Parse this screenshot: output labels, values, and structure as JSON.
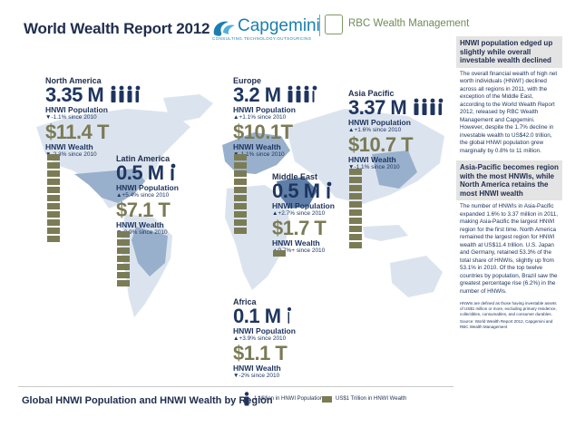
{
  "header": {
    "title": "World Wealth Report 2012",
    "capgemini_logo": "Capgemini",
    "capgemini_tagline": "CONSULTING.TECHNOLOGY.OUTSOURCING",
    "rbc_logo": "RBC Wealth Management"
  },
  "colors": {
    "navy": "#1f3560",
    "olive": "#7b7c56",
    "map_light": "#dbe4ee",
    "map_dark": "#7f9bbd"
  },
  "regions": [
    {
      "id": "north-america",
      "name": "North America",
      "population": "3.35 M",
      "pop_label": "HNWI Population",
      "pop_change": "▼-1.1% since 2010",
      "wealth": "$11.4 T",
      "wealth_label": "HNWI Wealth",
      "wealth_change": "▼-2.3% since 2010"
    },
    {
      "id": "europe",
      "name": "Europe",
      "population": "3.2 M",
      "pop_label": "HNWI Population",
      "pop_change": "▲+1.1% since 2010",
      "wealth": "$10.1T",
      "wealth_label": "HNWI Wealth",
      "wealth_change": "▼-1.1% since 2010"
    },
    {
      "id": "asia-pacific",
      "name": "Asia Pacific",
      "population": "3.37 M",
      "pop_label": "HNWI Population",
      "pop_change": "▲+1.6% since 2010",
      "wealth": "$10.7 T",
      "wealth_label": "HNWI Wealth",
      "wealth_change": "▼-1.1% since 2010"
    },
    {
      "id": "latin-america",
      "name": "Latin America",
      "population": "0.5 M",
      "pop_label": "HNWI Population",
      "pop_change": "▲+5.4% since 2010",
      "wealth": "$7.1 T",
      "wealth_label": "HNWI Wealth",
      "wealth_change": "▼-2.9% since 2010"
    },
    {
      "id": "middle-east",
      "name": "Middle East",
      "population": "0.5 M",
      "pop_label": "HNWI Population",
      "pop_change": "▲+2.7% since 2010",
      "wealth": "$1.7 T",
      "wealth_label": "HNWI Wealth",
      "wealth_change": "▲0.7%+ since 2010"
    },
    {
      "id": "africa",
      "name": "Africa",
      "population": "0.1 M",
      "pop_label": "HNWI Population",
      "pop_change": "▲+3.9% since 2010",
      "wealth": "$1.1 T",
      "wealth_label": "HNWI Wealth",
      "wealth_change": "▼-2% since 2010"
    }
  ],
  "sidebar": {
    "heading1": "HNWI population edged up slightly while overall investable wealth declined",
    "para1": "The overall financial wealth of high net worth individuals (HNWI’) declined across all regions in 2011, with the exception of the Middle East, according to the World Wealth Report 2012, released by RBC Wealth Management and Capgemini. However, despite the 1.7% decline in investable wealth to US$42.0 trillion, the global HNWI population grew marginally by 0.8% to 11 million.",
    "heading2": "Asia-Pacific becomes region with the most HNWIs, while North America retains the most HNWI wealth",
    "para2": "The number of HNWIs in Asia-Pacific expanded 1.6% to 3.37 million in 2011, making Asia-Pacific the largest HNWI region for the first time. North America remained the largest region for HNWI wealth at US$11.4 trillion. U.S. Japan and Germany, retained 53.3% of the total share of HNWIs, slightly up from 53.1% in 2010. Of the top twelve countries by population, Brazil saw the greatest percentage rise (6.2%) in the number of HNWIs.",
    "footnote": "HNWIs are defined as those having investable assets of US$1 million or more, excluding primary residence, collectibles, consumables, and consumer durables.",
    "source": "Source: World Wealth Report 2012, Capgemini and RBC Wealth Management"
  },
  "footer": {
    "title": "Global HNWI Population and HNWI Wealth by Region",
    "legend_population": "1 Million in HNWI Population",
    "legend_wealth": "US$1 Trillion in HNWI Wealth"
  }
}
